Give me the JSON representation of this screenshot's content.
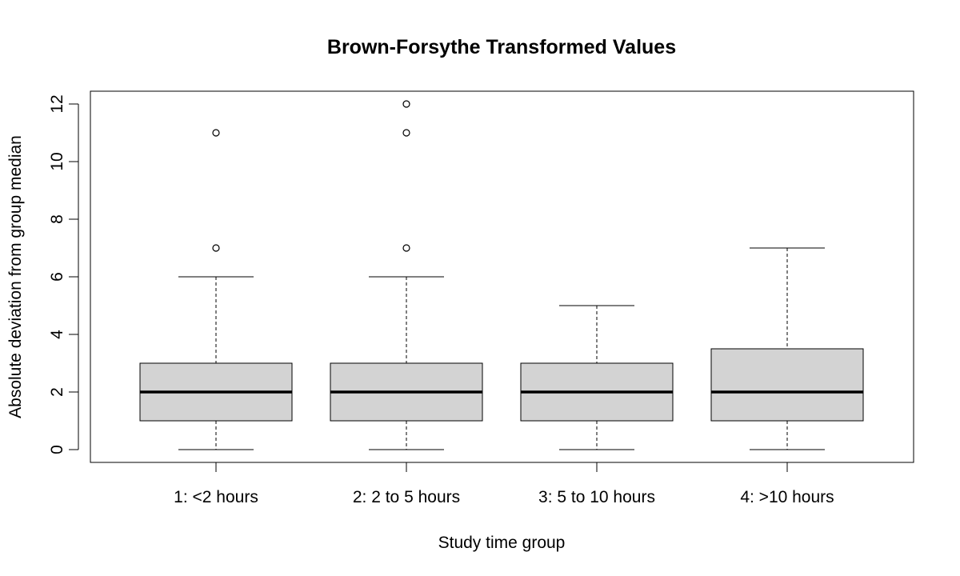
{
  "chart_data": {
    "type": "boxplot",
    "title": "Brown-Forsythe Transformed Values",
    "xlabel": "Study time group",
    "ylabel": "Absolute deviation from group median",
    "ylim": [
      0,
      12
    ],
    "yticks": [
      0,
      2,
      4,
      6,
      8,
      10,
      12
    ],
    "grid": false,
    "categories": [
      "1: <2 hours",
      "2: 2 to 5 hours",
      "3: 5 to 10 hours",
      "4: >10 hours"
    ],
    "boxes": [
      {
        "category": "1: <2 hours",
        "whisker_low": 0,
        "q1": 1,
        "median": 2,
        "q3": 3,
        "whisker_high": 6,
        "outliers": [
          7,
          11
        ]
      },
      {
        "category": "2: 2 to 5 hours",
        "whisker_low": 0,
        "q1": 1,
        "median": 2,
        "q3": 3,
        "whisker_high": 6,
        "outliers": [
          7,
          11,
          12
        ]
      },
      {
        "category": "3: 5 to 10 hours",
        "whisker_low": 0,
        "q1": 1,
        "median": 2,
        "q3": 3,
        "whisker_high": 5,
        "outliers": []
      },
      {
        "category": "4: >10 hours",
        "whisker_low": 0,
        "q1": 1,
        "median": 2,
        "q3": 3.5,
        "whisker_high": 7,
        "outliers": []
      }
    ],
    "colors": {
      "box_fill": "#d3d3d3",
      "stroke": "#000000"
    }
  }
}
